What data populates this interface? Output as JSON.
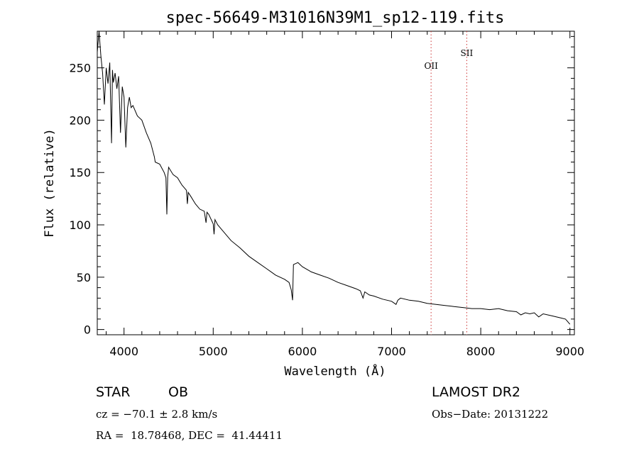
{
  "chart_data": {
    "type": "line",
    "title": "spec-56649-M31016N39M1_sp12-119.fits",
    "xlabel": "Wavelength (Å)",
    "ylabel": "Flux (relative)",
    "xlim": [
      3700,
      9050
    ],
    "ylim": [
      -5,
      285
    ],
    "xticks": [
      4000,
      5000,
      6000,
      7000,
      8000,
      9000
    ],
    "yticks": [
      0,
      50,
      100,
      150,
      200,
      250
    ],
    "grid": false,
    "series": [
      {
        "x": [
          3700,
          3720,
          3740,
          3760,
          3780,
          3800,
          3820,
          3840,
          3860,
          3870,
          3880,
          3900,
          3920,
          3940,
          3960,
          3980,
          4000,
          4020,
          4040,
          4060,
          4080,
          4100,
          4150,
          4200,
          4250,
          4300,
          4340,
          4350,
          4400,
          4450,
          4470,
          4480,
          4490,
          4500,
          4550,
          4600,
          4650,
          4700,
          4710,
          4720,
          4750,
          4800,
          4850,
          4900,
          4920,
          4930,
          4950,
          5000,
          5010,
          5020,
          5050,
          5100,
          5200,
          5300,
          5400,
          5500,
          5600,
          5700,
          5800,
          5850,
          5875,
          5890,
          5900,
          5950,
          6000,
          6100,
          6200,
          6300,
          6400,
          6500,
          6600,
          6650,
          6680,
          6700,
          6750,
          6800,
          6900,
          7000,
          7050,
          7070,
          7100,
          7200,
          7300,
          7400,
          7500,
          7600,
          7700,
          7800,
          7900,
          8000,
          8100,
          8200,
          8300,
          8400,
          8450,
          8500,
          8550,
          8600,
          8650,
          8700,
          8800,
          8900,
          8950,
          8970,
          9000
        ],
        "y": [
          265,
          285,
          262,
          245,
          215,
          250,
          235,
          255,
          178,
          248,
          236,
          245,
          230,
          242,
          188,
          232,
          222,
          174,
          212,
          222,
          212,
          214,
          204,
          200,
          188,
          178,
          165,
          160,
          158,
          150,
          145,
          110,
          146,
          155,
          148,
          145,
          138,
          133,
          120,
          131,
          127,
          120,
          115,
          113,
          102,
          112,
          110,
          101,
          91,
          105,
          100,
          95,
          85,
          78,
          70,
          64,
          58,
          52,
          48,
          45,
          38,
          28,
          62,
          64,
          60,
          55,
          52,
          49,
          45,
          42,
          39,
          37,
          30,
          36,
          33,
          32,
          29,
          27,
          24,
          28,
          30,
          28,
          27,
          25,
          24,
          23,
          22,
          21,
          20,
          20,
          19,
          20,
          18,
          17,
          14,
          16,
          15,
          16,
          12,
          15,
          13,
          11,
          10,
          8,
          5
        ]
      }
    ],
    "annotations": [
      {
        "label": "OII",
        "x": 7443,
        "style": "dotted"
      },
      {
        "label": "SII",
        "x": 7843,
        "style": "dotted"
      }
    ]
  },
  "info": {
    "object_class": "STAR",
    "subclass": "OB",
    "survey": "LAMOST DR2",
    "cz": "cz = −70.1 ± 2.8 km/s",
    "obs_date": "Obs−Date: 20131222",
    "radec": "RA =  18.78468, DEC =  41.44411"
  },
  "colors": {
    "spectrum": "#000000",
    "annotation": "#cc3333",
    "axes": "#000000"
  }
}
